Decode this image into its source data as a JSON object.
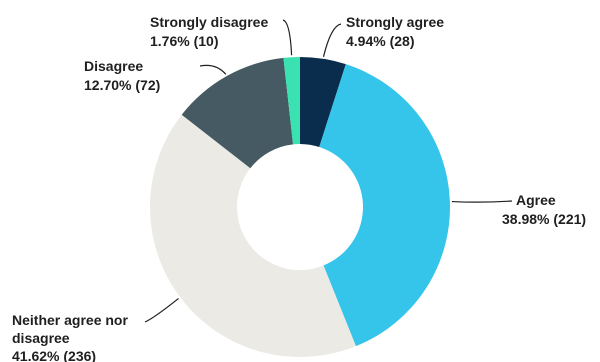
{
  "chart_data": {
    "type": "pie",
    "title": "",
    "donut": true,
    "slices": [
      {
        "label": "Strongly agree",
        "value_text": "4.94% (28)",
        "percent": 4.94,
        "count": 28,
        "color": "#0b2d4d"
      },
      {
        "label": "Agree",
        "value_text": "38.98% (221)",
        "percent": 38.98,
        "count": 221,
        "color": "#35c5ea"
      },
      {
        "label": "Neither agree nor disagree",
        "label_lines": [
          "Neither agree nor",
          "disagree"
        ],
        "value_text": "41.62% (236)",
        "percent": 41.62,
        "count": 236,
        "color": "#ebeae4"
      },
      {
        "label": "Disagree",
        "value_text": "12.70% (72)",
        "percent": 12.7,
        "count": 72,
        "color": "#465a63"
      },
      {
        "label": "Strongly disagree",
        "value_text": "1.76% (10)",
        "percent": 1.76,
        "count": 10,
        "color": "#39e2b0"
      }
    ]
  }
}
